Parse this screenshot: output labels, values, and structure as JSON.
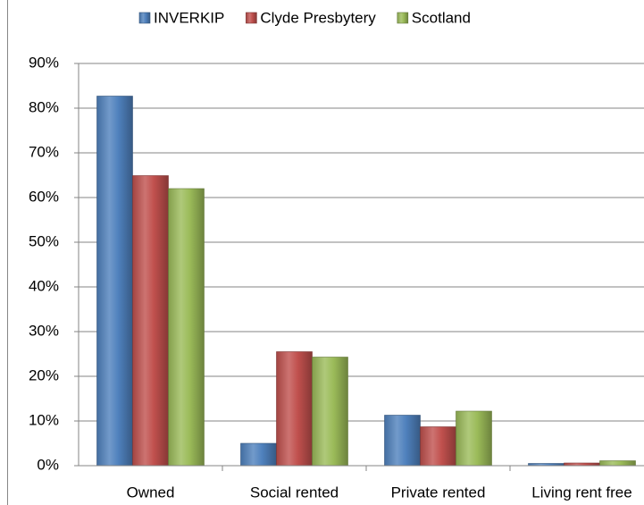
{
  "chart_data": {
    "type": "bar",
    "categories": [
      "Owned",
      "Social rented",
      "Private rented",
      "Living rent free"
    ],
    "series": [
      {
        "name": "INVERKIP",
        "color": "#4f81bd",
        "values": [
          82.7,
          5.0,
          11.3,
          0.5
        ]
      },
      {
        "name": "Clyde Presbytery",
        "color": "#c0504d",
        "values": [
          64.9,
          25.5,
          8.7,
          0.6
        ]
      },
      {
        "name": "Scotland",
        "color": "#9bbb59",
        "values": [
          62.0,
          24.3,
          12.2,
          1.1
        ]
      }
    ],
    "ylim": [
      0,
      90
    ],
    "yticks": [
      {
        "value": 0,
        "label": "0%"
      },
      {
        "value": 10,
        "label": "10%"
      },
      {
        "value": 20,
        "label": "20%"
      },
      {
        "value": 30,
        "label": "30%"
      },
      {
        "value": 40,
        "label": "40%"
      },
      {
        "value": 50,
        "label": "50%"
      },
      {
        "value": 60,
        "label": "60%"
      },
      {
        "value": 70,
        "label": "70%"
      },
      {
        "value": 80,
        "label": "80%"
      },
      {
        "value": 90,
        "label": "90%"
      }
    ],
    "grid": true,
    "legend": "top"
  }
}
